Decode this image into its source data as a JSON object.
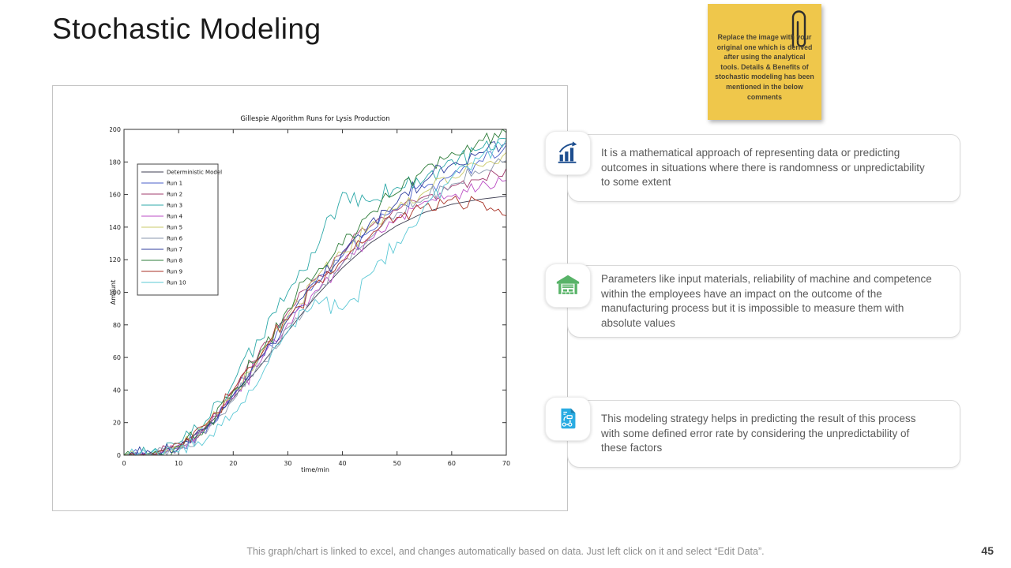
{
  "slide": {
    "title": "Stochastic Modeling",
    "footer": "This graph/chart is linked to excel, and changes automatically based on data. Just left click on it and select “Edit Data”.",
    "page_number": "45"
  },
  "sticky_note": {
    "bg_color": "#efc74b",
    "icon": "paperclip-icon",
    "text": "Replace the image with your original one which is derived after using the analytical tools. Details & Benefits of stochastic modeling has been mentioned in the below comments"
  },
  "benefits": [
    {
      "icon": "bar-chart-growth-icon",
      "icon_color": "#1d4e8f",
      "text": "It is a mathematical approach of representing data or predicting outcomes in situations where there is randomness or unpredictability to some extent"
    },
    {
      "icon": "warehouse-icon",
      "icon_color": "#58b368",
      "text": "Parameters like input materials, reliability of machine and competence within the employees have an impact on the outcome of the manufacturing process but it is impossible to measure them with absolute values"
    },
    {
      "icon": "process-document-icon",
      "icon_color": "#29abe2",
      "text": "This modeling strategy helps in predicting the result of this process with some defined error rate by considering the unpredictability of these factors"
    }
  ],
  "chart_data": {
    "type": "line",
    "title": "Gillespie Algorithm Runs for Lysis Production",
    "xlabel": "time/min",
    "ylabel": "Amount",
    "xlim": [
      0,
      70
    ],
    "ylim": [
      0,
      200
    ],
    "xticks": [
      0,
      10,
      20,
      30,
      40,
      50,
      60,
      70
    ],
    "yticks": [
      0,
      20,
      40,
      60,
      80,
      100,
      120,
      140,
      160,
      180,
      200
    ],
    "grid": false,
    "legend_position": "upper-left-inside",
    "x": [
      0,
      5,
      10,
      15,
      20,
      25,
      30,
      35,
      40,
      45,
      50,
      55,
      60,
      65,
      70
    ],
    "series": [
      {
        "name": "Deterministic Model",
        "color": "#3c3c50",
        "amp": 0,
        "seed": 1,
        "values": [
          0,
          1,
          6,
          17,
          35,
          55,
          76,
          97,
          115,
          130,
          141,
          149,
          154,
          157,
          159
        ]
      },
      {
        "name": "Run 1",
        "color": "#4a5fc9",
        "amp": 5,
        "seed": 11,
        "values": [
          0,
          0,
          4,
          15,
          38,
          60,
          85,
          105,
          122,
          138,
          152,
          165,
          172,
          180,
          190
        ]
      },
      {
        "name": "Run 2",
        "color": "#a23b6e",
        "amp": 5,
        "seed": 22,
        "values": [
          0,
          1,
          5,
          18,
          40,
          65,
          88,
          108,
          125,
          140,
          150,
          158,
          166,
          170,
          175
        ]
      },
      {
        "name": "Run 3",
        "color": "#2ca8a8",
        "amp": 6,
        "seed": 33,
        "values": [
          0,
          1,
          7,
          20,
          45,
          72,
          100,
          125,
          160,
          155,
          165,
          170,
          180,
          188,
          195
        ]
      },
      {
        "name": "Run 4",
        "color": "#bb4ec4",
        "amp": 5,
        "seed": 44,
        "values": [
          0,
          0,
          5,
          16,
          36,
          58,
          80,
          100,
          118,
          132,
          145,
          155,
          160,
          165,
          168
        ]
      },
      {
        "name": "Run 5",
        "color": "#c9c96a",
        "amp": 5,
        "seed": 55,
        "values": [
          0,
          1,
          6,
          18,
          38,
          62,
          85,
          108,
          125,
          140,
          152,
          162,
          170,
          178,
          185
        ]
      },
      {
        "name": "Run 6",
        "color": "#8a97ad",
        "amp": 5,
        "seed": 66,
        "values": [
          0,
          0,
          4,
          14,
          34,
          56,
          78,
          100,
          118,
          134,
          148,
          158,
          166,
          174,
          182
        ]
      },
      {
        "name": "Run 7",
        "color": "#2f3e9e",
        "amp": 5,
        "seed": 77,
        "values": [
          0,
          1,
          5,
          17,
          37,
          60,
          84,
          106,
          124,
          142,
          156,
          168,
          178,
          185,
          192
        ]
      },
      {
        "name": "Run 8",
        "color": "#2e7d3a",
        "amp": 6,
        "seed": 88,
        "values": [
          0,
          0,
          5,
          16,
          38,
          64,
          90,
          112,
          130,
          148,
          162,
          175,
          185,
          192,
          198
        ]
      },
      {
        "name": "Run 9",
        "color": "#a93226",
        "amp": 5,
        "seed": 99,
        "values": [
          0,
          1,
          6,
          18,
          40,
          62,
          84,
          104,
          120,
          134,
          145,
          152,
          158,
          155,
          147
        ]
      },
      {
        "name": "Run 10",
        "color": "#5bc8d5",
        "amp": 6,
        "seed": 110,
        "values": [
          0,
          0,
          3,
          10,
          25,
          48,
          75,
          95,
          88,
          110,
          130,
          152,
          170,
          182,
          193
        ]
      }
    ]
  }
}
